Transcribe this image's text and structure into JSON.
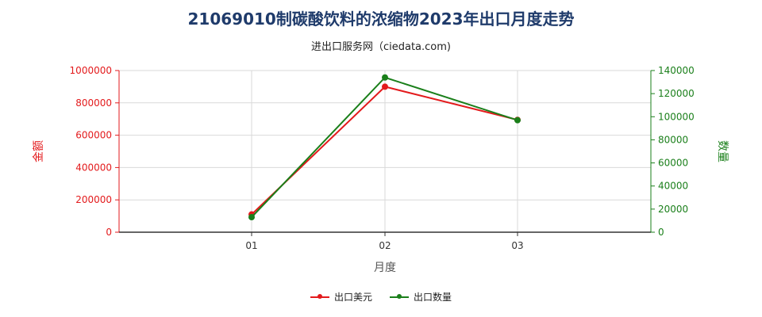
{
  "chart_data": {
    "type": "line",
    "title": "21069010制碳酸饮料的浓缩物2023年出口月度走势",
    "subtitle": "进出口服务网（ciedata.com)",
    "xlabel": "月度",
    "ylabel_left": "金额",
    "ylabel_right": "数量",
    "categories": [
      "01",
      "02",
      "03"
    ],
    "ylim_left": [
      0,
      1000000
    ],
    "yticks_left": [
      "0",
      "200000",
      "400000",
      "600000",
      "800000",
      "1000000"
    ],
    "ylim_right": [
      0,
      140000
    ],
    "yticks_right": [
      "0",
      "20000",
      "40000",
      "60000",
      "80000",
      "100000",
      "120000",
      "140000"
    ],
    "grid": true,
    "legend_position": "bottom",
    "series": [
      {
        "name": "出口美元",
        "axis": "left",
        "color": "#e31a1c",
        "values": [
          110000,
          900000,
          695000
        ]
      },
      {
        "name": "出口数量",
        "axis": "right",
        "color": "#1a7f1a",
        "values": [
          13000,
          134000,
          97000
        ]
      }
    ]
  }
}
